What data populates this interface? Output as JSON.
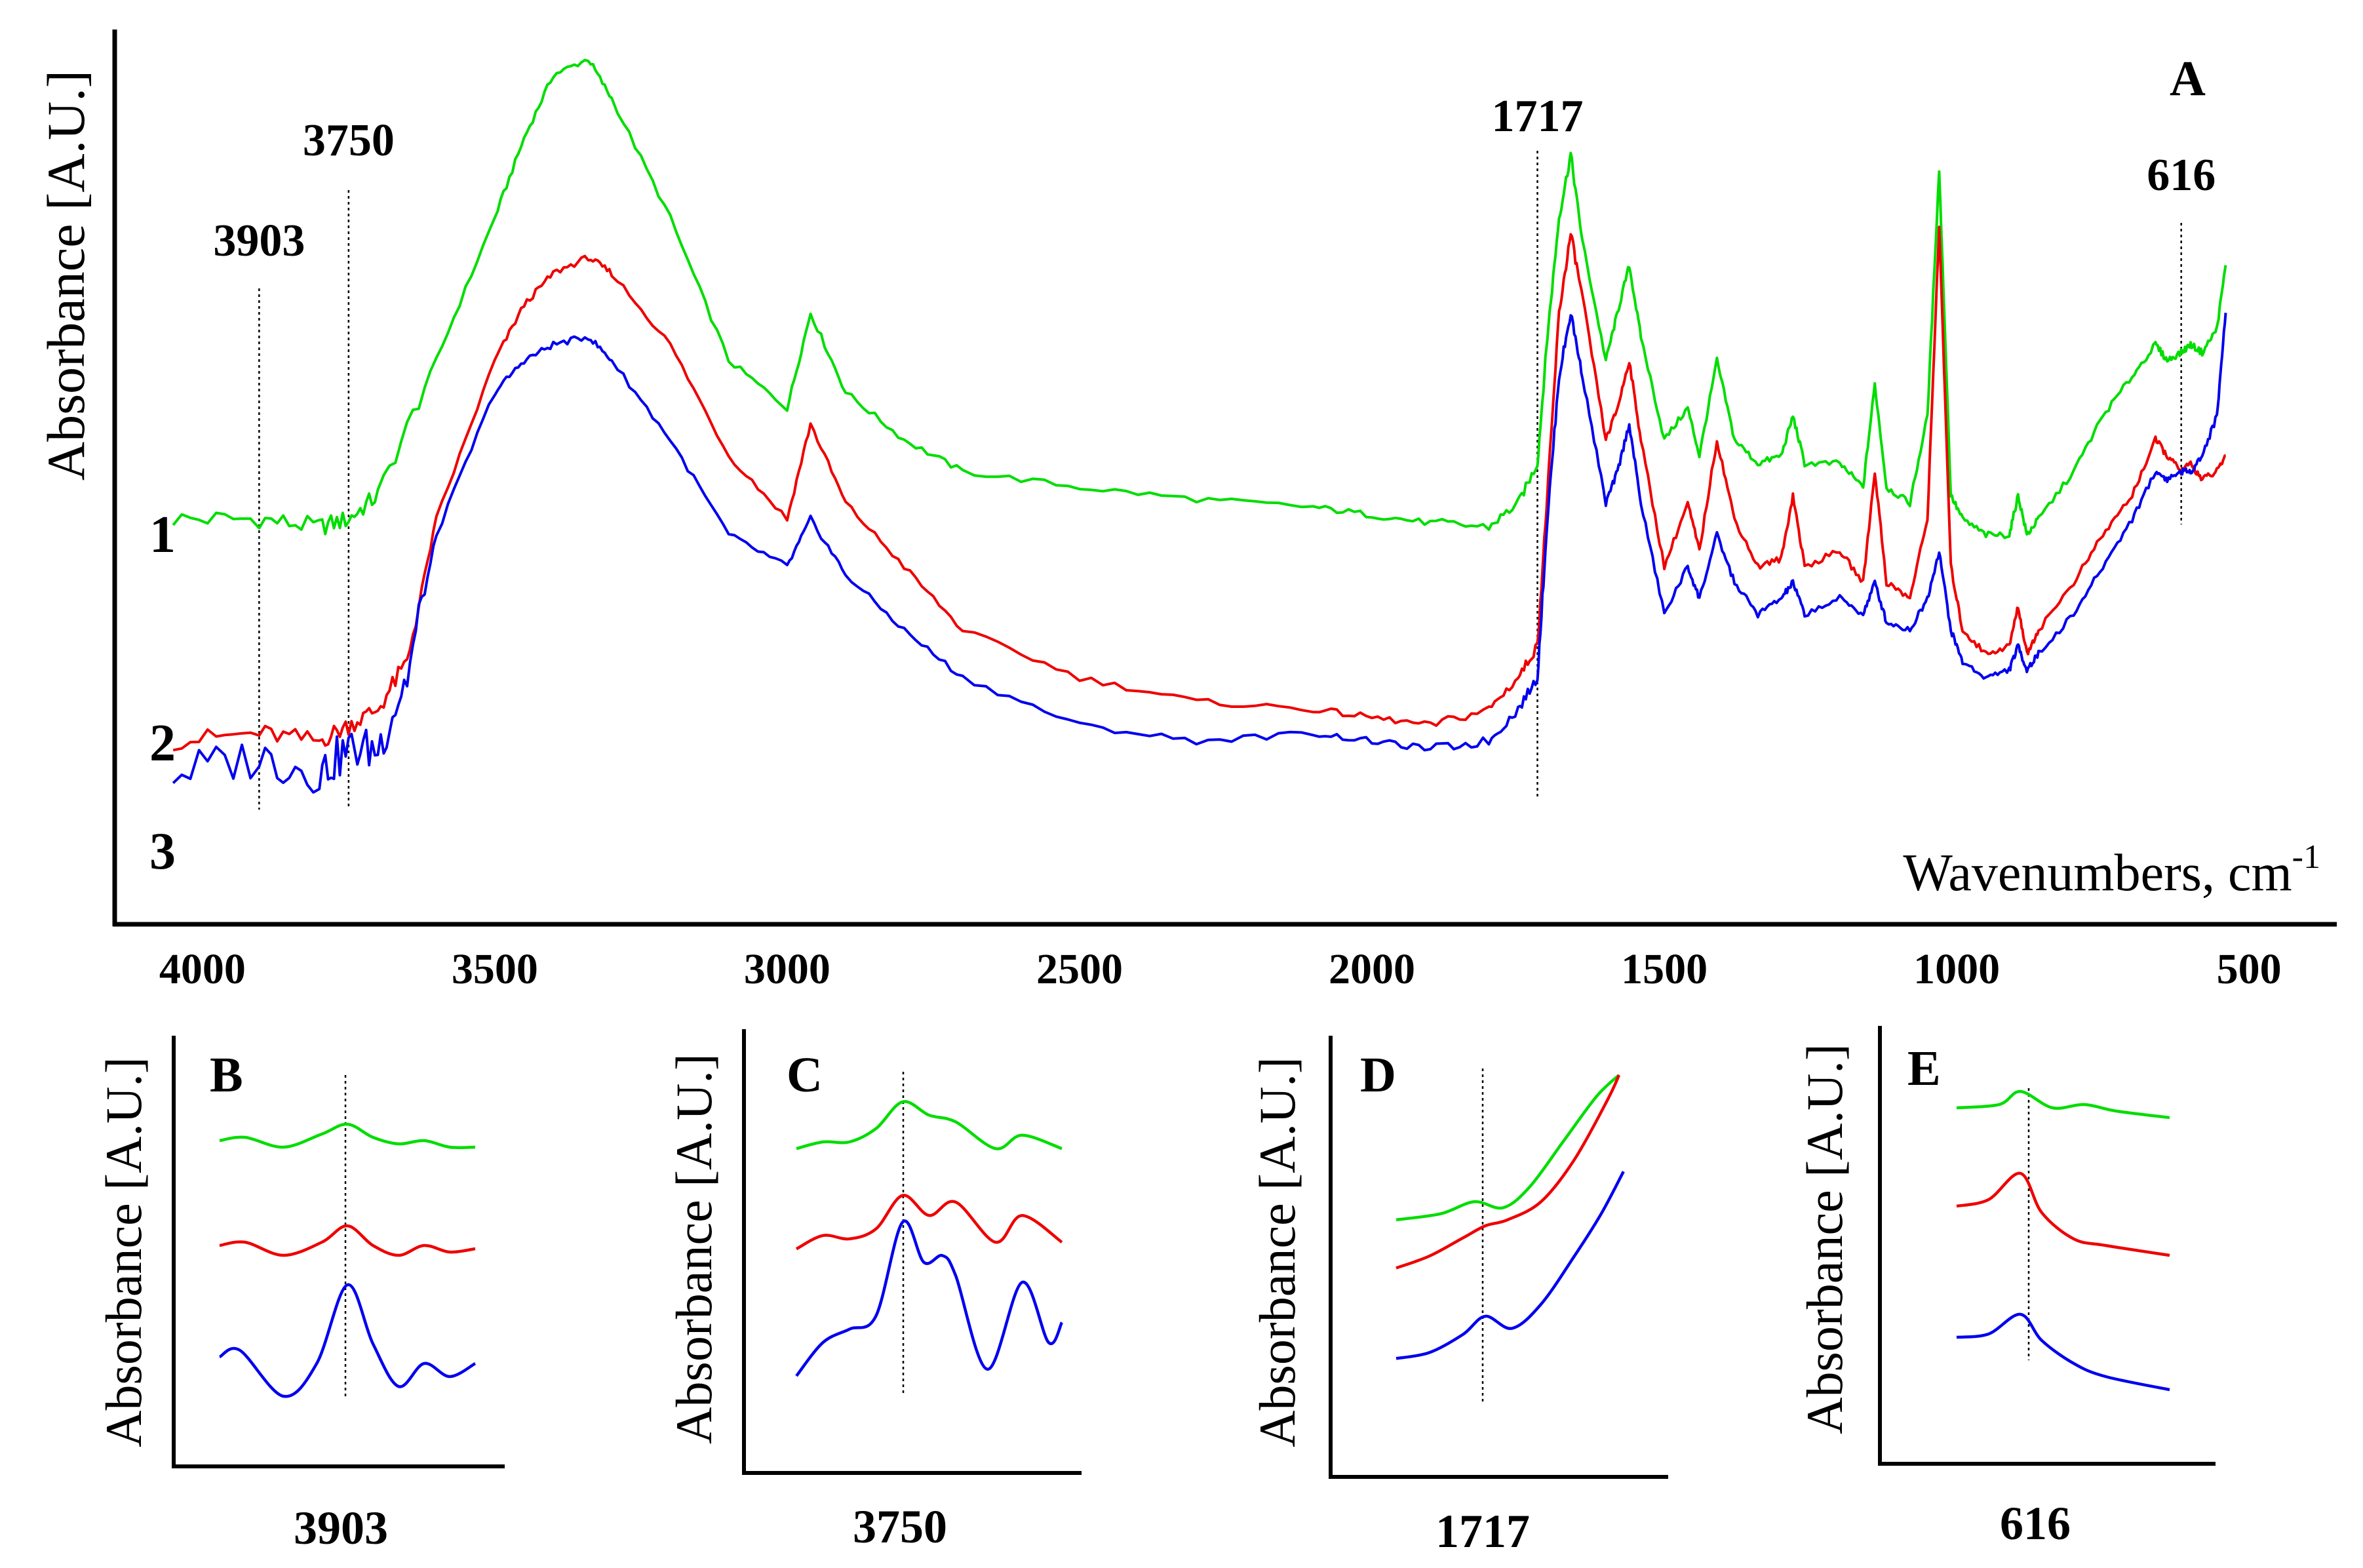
{
  "chart_data": [
    {
      "id": "A",
      "type": "line",
      "panel_label": "A",
      "xlabel": "Wavenumbers, cm",
      "xlabel_sup": "-1",
      "ylabel": "Absorbance [A.U.]",
      "xlim": [
        4150,
        350
      ],
      "xticks": [
        4000,
        3500,
        3000,
        2500,
        2000,
        1500,
        1000,
        500
      ],
      "ylim": [
        0,
        1.0
      ],
      "annotations": [
        {
          "label": "3903",
          "x": 3903
        },
        {
          "label": "3750",
          "x": 3750
        },
        {
          "label": "1717",
          "x": 1717
        },
        {
          "label": "616",
          "x": 616
        }
      ],
      "series": [
        {
          "name": "1",
          "color": "#00dd00",
          "x": [
            4050,
            3903,
            3800,
            3750,
            3700,
            3600,
            3500,
            3450,
            3400,
            3340,
            3300,
            3200,
            3100,
            3000,
            2960,
            2900,
            2800,
            2700,
            2500,
            2300,
            2100,
            2000,
            1900,
            1800,
            1750,
            1717,
            1700,
            1680,
            1660,
            1640,
            1600,
            1580,
            1560,
            1540,
            1500,
            1460,
            1440,
            1410,
            1380,
            1340,
            1300,
            1280,
            1260,
            1200,
            1160,
            1140,
            1120,
            1080,
            1050,
            1030,
            1010,
            990,
            950,
            910,
            895,
            880,
            860,
            800,
            750,
            700,
            660,
            640,
            616,
            600,
            580,
            555,
            540
          ],
          "y": [
            0.42,
            0.42,
            0.41,
            0.42,
            0.45,
            0.62,
            0.8,
            0.9,
            0.98,
            1.0,
            0.95,
            0.8,
            0.62,
            0.56,
            0.68,
            0.58,
            0.52,
            0.48,
            0.46,
            0.445,
            0.435,
            0.425,
            0.415,
            0.41,
            0.44,
            0.49,
            0.65,
            0.8,
            0.88,
            0.77,
            0.62,
            0.68,
            0.74,
            0.65,
            0.52,
            0.56,
            0.5,
            0.62,
            0.52,
            0.49,
            0.5,
            0.55,
            0.49,
            0.49,
            0.46,
            0.59,
            0.46,
            0.44,
            0.55,
            0.86,
            0.45,
            0.42,
            0.4,
            0.4,
            0.45,
            0.4,
            0.42,
            0.48,
            0.55,
            0.6,
            0.64,
            0.62,
            0.63,
            0.64,
            0.63,
            0.66,
            0.74
          ]
        },
        {
          "name": "2",
          "color": "#ee0000",
          "x": [
            4050,
            3903,
            3800,
            3750,
            3700,
            3650,
            3600,
            3500,
            3450,
            3400,
            3340,
            3300,
            3200,
            3100,
            3000,
            2960,
            2900,
            2800,
            2700,
            2500,
            2300,
            2100,
            2000,
            1900,
            1800,
            1750,
            1717,
            1700,
            1680,
            1660,
            1640,
            1600,
            1580,
            1560,
            1540,
            1500,
            1460,
            1440,
            1410,
            1380,
            1340,
            1300,
            1280,
            1260,
            1200,
            1160,
            1140,
            1120,
            1080,
            1050,
            1030,
            1010,
            990,
            950,
            910,
            895,
            880,
            860,
            800,
            750,
            700,
            660,
            640,
            616,
            600,
            580,
            555,
            540
          ],
          "y": [
            0.14,
            0.15,
            0.14,
            0.16,
            0.18,
            0.24,
            0.42,
            0.62,
            0.69,
            0.73,
            0.75,
            0.73,
            0.64,
            0.5,
            0.42,
            0.54,
            0.44,
            0.36,
            0.28,
            0.22,
            0.19,
            0.18,
            0.17,
            0.16,
            0.18,
            0.22,
            0.26,
            0.45,
            0.68,
            0.78,
            0.7,
            0.52,
            0.56,
            0.62,
            0.52,
            0.36,
            0.44,
            0.38,
            0.52,
            0.42,
            0.36,
            0.37,
            0.45,
            0.36,
            0.38,
            0.34,
            0.48,
            0.34,
            0.32,
            0.42,
            0.79,
            0.36,
            0.28,
            0.25,
            0.26,
            0.31,
            0.25,
            0.28,
            0.34,
            0.4,
            0.45,
            0.52,
            0.5,
            0.48,
            0.49,
            0.47,
            0.48,
            0.5
          ]
        },
        {
          "name": "3",
          "color": "#0000ee",
          "x": [
            4050,
            3903,
            3800,
            3750,
            3700,
            3650,
            3600,
            3500,
            3450,
            3400,
            3340,
            3300,
            3200,
            3100,
            3000,
            2960,
            2900,
            2800,
            2700,
            2500,
            2300,
            2100,
            2000,
            1900,
            1800,
            1750,
            1717,
            1700,
            1680,
            1660,
            1640,
            1600,
            1580,
            1560,
            1540,
            1500,
            1460,
            1440,
            1410,
            1380,
            1340,
            1300,
            1280,
            1260,
            1200,
            1160,
            1140,
            1120,
            1080,
            1050,
            1030,
            1010,
            990,
            950,
            910,
            895,
            880,
            860,
            800,
            750,
            700,
            660,
            640,
            616,
            600,
            580,
            555,
            540
          ],
          "y": [
            0.1,
            0.12,
            0.1,
            0.13,
            0.13,
            0.22,
            0.4,
            0.58,
            0.62,
            0.64,
            0.65,
            0.62,
            0.52,
            0.4,
            0.36,
            0.42,
            0.35,
            0.28,
            0.22,
            0.16,
            0.14,
            0.15,
            0.14,
            0.13,
            0.14,
            0.18,
            0.22,
            0.42,
            0.6,
            0.68,
            0.6,
            0.44,
            0.48,
            0.54,
            0.44,
            0.3,
            0.36,
            0.32,
            0.4,
            0.34,
            0.3,
            0.32,
            0.34,
            0.3,
            0.32,
            0.3,
            0.34,
            0.29,
            0.28,
            0.32,
            0.38,
            0.28,
            0.24,
            0.22,
            0.23,
            0.26,
            0.23,
            0.25,
            0.3,
            0.36,
            0.42,
            0.48,
            0.47,
            0.48,
            0.48,
            0.5,
            0.55,
            0.68
          ]
        }
      ]
    },
    {
      "id": "B",
      "type": "line",
      "panel_label": "B",
      "xlabel": "3903",
      "ylabel": "Absorbance [A.U.]",
      "series": [
        {
          "name": "1",
          "color": "#00dd00",
          "x": [
            0,
            0.1,
            0.25,
            0.4,
            0.5,
            0.6,
            0.7,
            0.8,
            0.9,
            1.0
          ],
          "y": [
            0.82,
            0.83,
            0.8,
            0.84,
            0.87,
            0.83,
            0.81,
            0.82,
            0.8,
            0.8
          ]
        },
        {
          "name": "2",
          "color": "#ee0000",
          "x": [
            0,
            0.1,
            0.25,
            0.4,
            0.5,
            0.6,
            0.7,
            0.8,
            0.9,
            1.0
          ],
          "y": [
            0.5,
            0.51,
            0.47,
            0.51,
            0.56,
            0.5,
            0.47,
            0.5,
            0.48,
            0.49
          ]
        },
        {
          "name": "3",
          "color": "#0000ee",
          "x": [
            0,
            0.08,
            0.25,
            0.38,
            0.5,
            0.6,
            0.7,
            0.8,
            0.9,
            1.0
          ],
          "y": [
            0.16,
            0.18,
            0.04,
            0.14,
            0.38,
            0.2,
            0.07,
            0.14,
            0.1,
            0.14
          ]
        }
      ]
    },
    {
      "id": "C",
      "type": "line",
      "panel_label": "C",
      "xlabel": "3750",
      "ylabel": "Absorbance [A.U.]",
      "series": [
        {
          "name": "1",
          "color": "#00dd00",
          "x": [
            0,
            0.1,
            0.2,
            0.3,
            0.4,
            0.5,
            0.6,
            0.75,
            0.85,
            1.0
          ],
          "y": [
            0.78,
            0.8,
            0.8,
            0.84,
            0.92,
            0.88,
            0.86,
            0.78,
            0.82,
            0.78
          ]
        },
        {
          "name": "2",
          "color": "#ee0000",
          "x": [
            0,
            0.1,
            0.2,
            0.3,
            0.4,
            0.5,
            0.6,
            0.75,
            0.85,
            1.0
          ],
          "y": [
            0.48,
            0.52,
            0.51,
            0.54,
            0.64,
            0.58,
            0.62,
            0.5,
            0.58,
            0.5
          ]
        },
        {
          "name": "3",
          "color": "#0000ee",
          "x": [
            0,
            0.1,
            0.2,
            0.3,
            0.4,
            0.48,
            0.55,
            0.6,
            0.72,
            0.85,
            0.95,
            1.0
          ],
          "y": [
            0.1,
            0.2,
            0.24,
            0.28,
            0.56,
            0.44,
            0.46,
            0.4,
            0.12,
            0.38,
            0.2,
            0.26
          ]
        }
      ]
    },
    {
      "id": "D",
      "type": "line",
      "panel_label": "D",
      "xlabel": "1717",
      "ylabel": "Absorbance [A.U.]",
      "series": [
        {
          "name": "1",
          "color": "#00dd00",
          "x": [
            0,
            0.2,
            0.35,
            0.48,
            0.6,
            0.75,
            0.9,
            1.0
          ],
          "y": [
            0.52,
            0.54,
            0.58,
            0.56,
            0.63,
            0.78,
            0.93,
            1.0
          ]
        },
        {
          "name": "2",
          "color": "#ee0000",
          "x": [
            0,
            0.15,
            0.3,
            0.4,
            0.5,
            0.65,
            0.8,
            0.95,
            1.0
          ],
          "y": [
            0.36,
            0.4,
            0.46,
            0.5,
            0.52,
            0.58,
            0.72,
            0.92,
            1.0
          ]
        },
        {
          "name": "3",
          "color": "#0000ee",
          "x": [
            0,
            0.15,
            0.3,
            0.4,
            0.52,
            0.65,
            0.8,
            0.92,
            1.02
          ],
          "y": [
            0.06,
            0.08,
            0.14,
            0.2,
            0.16,
            0.24,
            0.4,
            0.54,
            0.68
          ]
        }
      ]
    },
    {
      "id": "E",
      "type": "line",
      "panel_label": "E",
      "xlabel": "616",
      "ylabel": "Absorbance [A.U.]",
      "series": [
        {
          "name": "1",
          "color": "#00dd00",
          "x": [
            0,
            0.2,
            0.3,
            0.45,
            0.6,
            0.75,
            1.0
          ],
          "y": [
            0.88,
            0.89,
            0.93,
            0.88,
            0.89,
            0.87,
            0.85
          ]
        },
        {
          "name": "2",
          "color": "#ee0000",
          "x": [
            0,
            0.15,
            0.3,
            0.4,
            0.55,
            0.7,
            1.0
          ],
          "y": [
            0.58,
            0.6,
            0.68,
            0.56,
            0.48,
            0.46,
            0.43
          ]
        },
        {
          "name": "3",
          "color": "#0000ee",
          "x": [
            0,
            0.15,
            0.3,
            0.4,
            0.55,
            0.7,
            1.0
          ],
          "y": [
            0.18,
            0.19,
            0.25,
            0.17,
            0.1,
            0.06,
            0.02
          ]
        }
      ]
    }
  ]
}
